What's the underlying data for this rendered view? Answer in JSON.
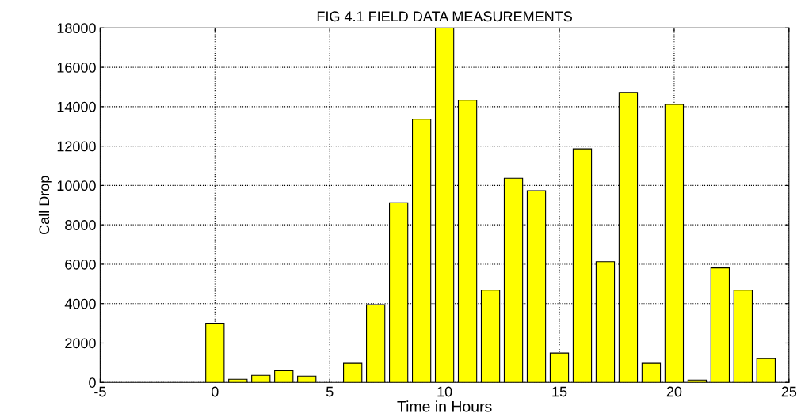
{
  "chart_data": {
    "type": "bar",
    "title": "FIG 4.1 FIELD DATA MEASUREMENTS",
    "xlabel": "Time in Hours",
    "ylabel": "Call Drop",
    "x": [
      0,
      1,
      2,
      3,
      4,
      6,
      7,
      8,
      9,
      10,
      11,
      12,
      13,
      14,
      15,
      16,
      17,
      18,
      19,
      20,
      21,
      22,
      23,
      24
    ],
    "values": [
      3000,
      160,
      360,
      600,
      320,
      970,
      3950,
      9120,
      13360,
      18000,
      14330,
      4680,
      10370,
      9730,
      1490,
      11860,
      6130,
      14730,
      970,
      14120,
      120,
      5810,
      4680,
      1210
    ],
    "color": "#ffff00",
    "xlim": [
      -5,
      25
    ],
    "xticks": [
      -5,
      0,
      5,
      10,
      15,
      20,
      25
    ],
    "ylim": [
      0,
      18000
    ],
    "yticks": [
      0,
      2000,
      4000,
      6000,
      8000,
      10000,
      12000,
      14000,
      16000,
      18000
    ],
    "grid": true,
    "line_style": "dotted"
  }
}
